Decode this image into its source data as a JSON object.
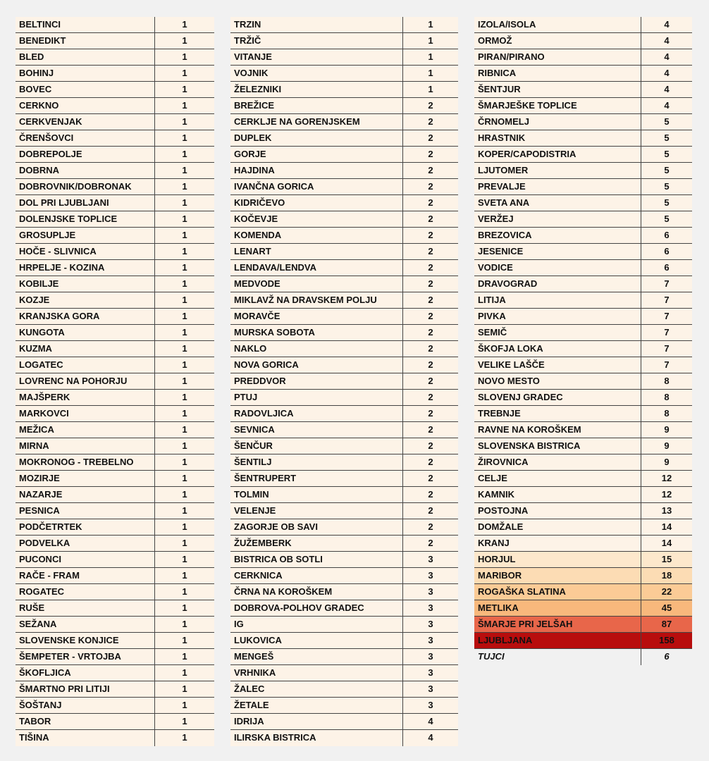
{
  "columns": [
    {
      "rows": [
        {
          "name": "BELTINCI",
          "value": "1"
        },
        {
          "name": "BENEDIKT",
          "value": "1"
        },
        {
          "name": "BLED",
          "value": "1"
        },
        {
          "name": "BOHINJ",
          "value": "1"
        },
        {
          "name": "BOVEC",
          "value": "1"
        },
        {
          "name": "CERKNO",
          "value": "1"
        },
        {
          "name": "CERKVENJAK",
          "value": "1"
        },
        {
          "name": "ČRENŠOVCI",
          "value": "1"
        },
        {
          "name": "DOBREPOLJE",
          "value": "1"
        },
        {
          "name": "DOBRNA",
          "value": "1"
        },
        {
          "name": "DOBROVNIK/DOBRONAK",
          "value": "1"
        },
        {
          "name": "DOL PRI LJUBLJANI",
          "value": "1"
        },
        {
          "name": "DOLENJSKE TOPLICE",
          "value": "1"
        },
        {
          "name": "GROSUPLJE",
          "value": "1"
        },
        {
          "name": "HOČE - SLIVNICA",
          "value": "1"
        },
        {
          "name": "HRPELJE - KOZINA",
          "value": "1"
        },
        {
          "name": "KOBILJE",
          "value": "1"
        },
        {
          "name": "KOZJE",
          "value": "1"
        },
        {
          "name": "KRANJSKA GORA",
          "value": "1"
        },
        {
          "name": "KUNGOTA",
          "value": "1"
        },
        {
          "name": "KUZMA",
          "value": "1"
        },
        {
          "name": "LOGATEC",
          "value": "1"
        },
        {
          "name": "LOVRENC NA POHORJU",
          "value": "1"
        },
        {
          "name": "MAJŠPERK",
          "value": "1"
        },
        {
          "name": "MARKOVCI",
          "value": "1"
        },
        {
          "name": "MEŽICA",
          "value": "1"
        },
        {
          "name": "MIRNA",
          "value": "1"
        },
        {
          "name": "MOKRONOG - TREBELNO",
          "value": "1"
        },
        {
          "name": "MOZIRJE",
          "value": "1"
        },
        {
          "name": "NAZARJE",
          "value": "1"
        },
        {
          "name": "PESNICA",
          "value": "1"
        },
        {
          "name": "PODČETRTEK",
          "value": "1"
        },
        {
          "name": "PODVELKA",
          "value": "1"
        },
        {
          "name": "PUCONCI",
          "value": "1"
        },
        {
          "name": "RAČE - FRAM",
          "value": "1"
        },
        {
          "name": "ROGATEC",
          "value": "1"
        },
        {
          "name": "RUŠE",
          "value": "1"
        },
        {
          "name": "SEŽANA",
          "value": "1"
        },
        {
          "name": "SLOVENSKE KONJICE",
          "value": "1"
        },
        {
          "name": "ŠEMPETER - VRTOJBA",
          "value": "1"
        },
        {
          "name": "ŠKOFLJICA",
          "value": "1"
        },
        {
          "name": "ŠMARTNO PRI LITIJI",
          "value": "1"
        },
        {
          "name": "ŠOŠTANJ",
          "value": "1"
        },
        {
          "name": "TABOR",
          "value": "1"
        },
        {
          "name": "TIŠINA",
          "value": "1"
        }
      ]
    },
    {
      "rows": [
        {
          "name": "TRZIN",
          "value": "1"
        },
        {
          "name": "TRŽIČ",
          "value": "1"
        },
        {
          "name": "VITANJE",
          "value": "1"
        },
        {
          "name": "VOJNIK",
          "value": "1"
        },
        {
          "name": "ŽELEZNIKI",
          "value": "1"
        },
        {
          "name": "BREŽICE",
          "value": "2"
        },
        {
          "name": "CERKLJE NA GORENJSKEM",
          "value": "2"
        },
        {
          "name": "DUPLEK",
          "value": "2"
        },
        {
          "name": "GORJE",
          "value": "2"
        },
        {
          "name": "HAJDINA",
          "value": "2"
        },
        {
          "name": "IVANČNA GORICA",
          "value": "2"
        },
        {
          "name": "KIDRIČEVO",
          "value": "2"
        },
        {
          "name": "KOČEVJE",
          "value": "2"
        },
        {
          "name": "KOMENDA",
          "value": "2"
        },
        {
          "name": "LENART",
          "value": "2"
        },
        {
          "name": "LENDAVA/LENDVA",
          "value": "2"
        },
        {
          "name": "MEDVODE",
          "value": "2"
        },
        {
          "name": "MIKLAVŽ NA DRAVSKEM POLJU",
          "value": "2"
        },
        {
          "name": "MORAVČE",
          "value": "2"
        },
        {
          "name": "MURSKA SOBOTA",
          "value": "2"
        },
        {
          "name": "NAKLO",
          "value": "2"
        },
        {
          "name": "NOVA GORICA",
          "value": "2"
        },
        {
          "name": "PREDDVOR",
          "value": "2"
        },
        {
          "name": "PTUJ",
          "value": "2"
        },
        {
          "name": "RADOVLJICA",
          "value": "2"
        },
        {
          "name": "SEVNICA",
          "value": "2"
        },
        {
          "name": "ŠENČUR",
          "value": "2"
        },
        {
          "name": "ŠENTILJ",
          "value": "2"
        },
        {
          "name": "ŠENTRUPERT",
          "value": "2"
        },
        {
          "name": "TOLMIN",
          "value": "2"
        },
        {
          "name": "VELENJE",
          "value": "2"
        },
        {
          "name": "ZAGORJE OB SAVI",
          "value": "2"
        },
        {
          "name": "ŽUŽEMBERK",
          "value": "2"
        },
        {
          "name": "BISTRICA OB SOTLI",
          "value": "3"
        },
        {
          "name": "CERKNICA",
          "value": "3"
        },
        {
          "name": "ČRNA NA KOROŠKEM",
          "value": "3"
        },
        {
          "name": "DOBROVA-POLHOV GRADEC",
          "value": "3"
        },
        {
          "name": "IG",
          "value": "3"
        },
        {
          "name": "LUKOVICA",
          "value": "3"
        },
        {
          "name": "MENGEŠ",
          "value": "3"
        },
        {
          "name": "VRHNIKA",
          "value": "3"
        },
        {
          "name": "ŽALEC",
          "value": "3"
        },
        {
          "name": "ŽETALE",
          "value": "3"
        },
        {
          "name": "IDRIJA",
          "value": "4"
        },
        {
          "name": "ILIRSKA BISTRICA",
          "value": "4"
        }
      ]
    },
    {
      "rows": [
        {
          "name": "IZOLA/ISOLA",
          "value": "4"
        },
        {
          "name": "ORMOŽ",
          "value": "4"
        },
        {
          "name": "PIRAN/PIRANO",
          "value": "4"
        },
        {
          "name": "RIBNICA",
          "value": "4"
        },
        {
          "name": "ŠENTJUR",
          "value": "4"
        },
        {
          "name": "ŠMARJEŠKE TOPLICE",
          "value": "4"
        },
        {
          "name": "ČRNOMELJ",
          "value": "5"
        },
        {
          "name": "HRASTNIK",
          "value": "5"
        },
        {
          "name": "KOPER/CAPODISTRIA",
          "value": "5"
        },
        {
          "name": "LJUTOMER",
          "value": "5"
        },
        {
          "name": "PREVALJE",
          "value": "5"
        },
        {
          "name": "SVETA ANA",
          "value": "5"
        },
        {
          "name": "VERŽEJ",
          "value": "5"
        },
        {
          "name": "BREZOVICA",
          "value": "6"
        },
        {
          "name": "JESENICE",
          "value": "6"
        },
        {
          "name": "VODICE",
          "value": "6"
        },
        {
          "name": "DRAVOGRAD",
          "value": "7"
        },
        {
          "name": "LITIJA",
          "value": "7"
        },
        {
          "name": "PIVKA",
          "value": "7"
        },
        {
          "name": "SEMIČ",
          "value": "7"
        },
        {
          "name": "ŠKOFJA LOKA",
          "value": "7"
        },
        {
          "name": "VELIKE LAŠČE",
          "value": "7"
        },
        {
          "name": "NOVO MESTO",
          "value": "8"
        },
        {
          "name": "SLOVENJ GRADEC",
          "value": "8"
        },
        {
          "name": "TREBNJE",
          "value": "8"
        },
        {
          "name": "RAVNE NA KOROŠKEM",
          "value": "9"
        },
        {
          "name": "SLOVENSKA BISTRICA",
          "value": "9"
        },
        {
          "name": "ŽIROVNICA",
          "value": "9"
        },
        {
          "name": "CELJE",
          "value": "12"
        },
        {
          "name": "KAMNIK",
          "value": "12"
        },
        {
          "name": "POSTOJNA",
          "value": "13"
        },
        {
          "name": "DOMŽALE",
          "value": "14"
        },
        {
          "name": "KRANJ",
          "value": "14"
        },
        {
          "name": "HORJUL",
          "value": "15",
          "color": "#fde8cc"
        },
        {
          "name": "MARIBOR",
          "value": "18",
          "color": "#fcdcb4"
        },
        {
          "name": "ROGAŠKA SLATINA",
          "value": "22",
          "color": "#fbcb96"
        },
        {
          "name": "METLIKA",
          "value": "45",
          "color": "#f8b87c"
        },
        {
          "name": "ŠMARJE PRI JELŠAH",
          "value": "87",
          "color": "#e8664a"
        },
        {
          "name": "LJUBLJANA",
          "value": "158",
          "color": "#b80d0d"
        },
        {
          "name": "TUJCI",
          "value": "6",
          "italic": true
        }
      ]
    }
  ],
  "colors": {
    "cell_background": "#fdf3e7",
    "page_background": "#f1f1f1"
  }
}
